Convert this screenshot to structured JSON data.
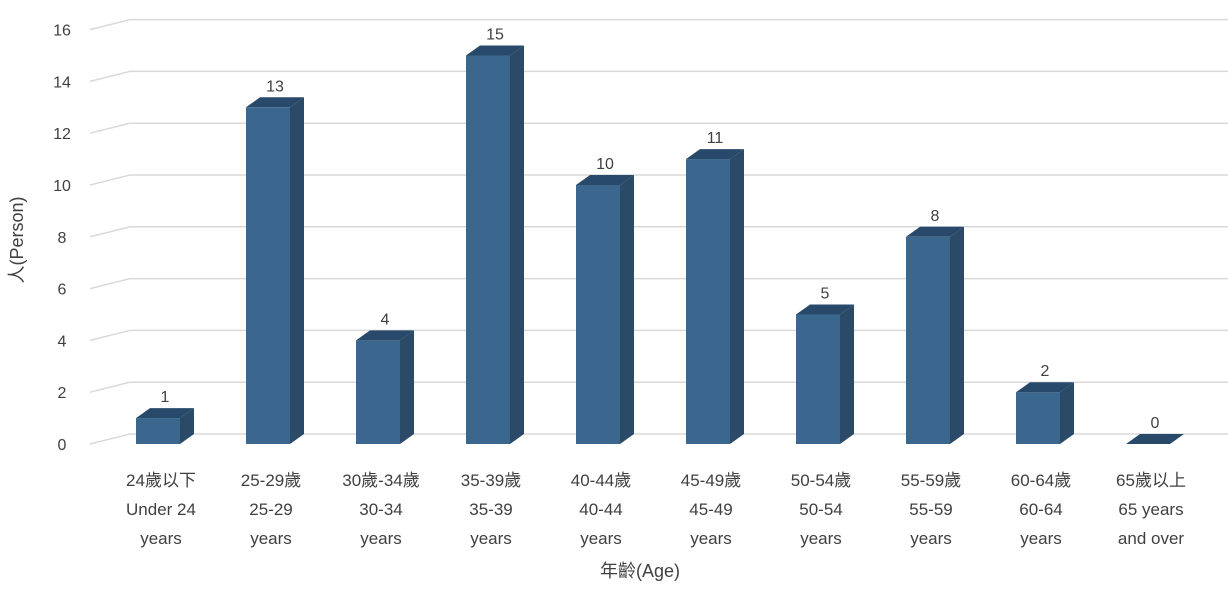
{
  "chart_data": {
    "type": "bar",
    "style": "3d-column",
    "categories": [
      [
        "24歲以下",
        "Under 24",
        "years"
      ],
      [
        "25-29歲",
        "25-29",
        "years"
      ],
      [
        "30歲-34歲",
        "30-34",
        "years"
      ],
      [
        "35-39歲",
        "35-39",
        "years"
      ],
      [
        "40-44歲",
        "40-44",
        "years"
      ],
      [
        "45-49歲",
        "45-49",
        "years"
      ],
      [
        "50-54歲",
        "50-54",
        "years"
      ],
      [
        "55-59歲",
        "55-59",
        "years"
      ],
      [
        "60-64歲",
        "60-64",
        "years"
      ],
      [
        "65歲以上",
        "65 years",
        "and over"
      ]
    ],
    "values": [
      1,
      13,
      4,
      15,
      10,
      11,
      5,
      8,
      2,
      0
    ],
    "data_labels": [
      "1",
      "13",
      "4",
      "15",
      "10",
      "11",
      "5",
      "8",
      "2",
      "0"
    ],
    "xlabel": "年齡(Age)",
    "ylabel": "人(Person)",
    "ylim": [
      0,
      16
    ],
    "yticks": [
      0,
      2,
      4,
      6,
      8,
      10,
      12,
      14,
      16
    ],
    "grid": true,
    "legend": "none",
    "colors": {
      "bar_front": "#3b668d",
      "bar_side": "#2a4a68",
      "bar_top": "#28496a",
      "grid": "#d9d9d9",
      "text": "#404040"
    }
  }
}
